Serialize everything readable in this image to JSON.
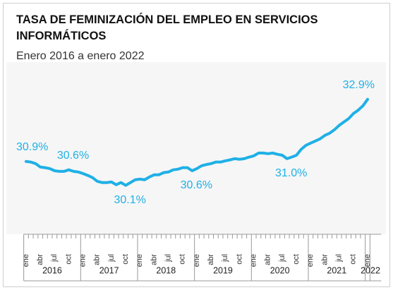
{
  "chart_data": {
    "type": "line",
    "title": "TASA DE FEMINIZACIÓN DEL EMPLEO EN SERVICIOS INFORMÁTICOS",
    "subtitle": "Enero 2016 a enero 2022",
    "categories": [
      "ene",
      null,
      null,
      "abr",
      null,
      null,
      "jul",
      null,
      null,
      "oct",
      null,
      null,
      "ene",
      null,
      null,
      "abr",
      null,
      null,
      "jul",
      null,
      null,
      "oct",
      null,
      null,
      "ene",
      null,
      null,
      "abr",
      null,
      null,
      "jul",
      null,
      null,
      "oct",
      null,
      null,
      "ene",
      null,
      null,
      "abr",
      null,
      null,
      "jul",
      null,
      null,
      "oct",
      null,
      null,
      "ene",
      null,
      null,
      "abr",
      null,
      null,
      "jul",
      null,
      null,
      "oct",
      null,
      null,
      "ene",
      null,
      null,
      "abr",
      null,
      null,
      "jul",
      null,
      null,
      "oct",
      null,
      null,
      "ene"
    ],
    "years": [
      "2016",
      "2017",
      "2018",
      "2019",
      "2020",
      "2021",
      "2022"
    ],
    "series": [
      {
        "name": "Tasa de feminización",
        "color": "#1fb0e6",
        "values": [
          30.9,
          30.88,
          30.83,
          30.72,
          30.7,
          30.67,
          30.6,
          30.58,
          30.58,
          30.63,
          30.58,
          30.56,
          30.51,
          30.45,
          30.38,
          30.26,
          30.22,
          30.22,
          30.24,
          30.15,
          30.22,
          30.13,
          30.22,
          30.31,
          30.33,
          30.31,
          30.4,
          30.47,
          30.47,
          30.54,
          30.56,
          30.63,
          30.65,
          30.7,
          30.7,
          30.6,
          30.67,
          30.76,
          30.8,
          30.83,
          30.88,
          30.88,
          30.92,
          30.95,
          30.99,
          30.97,
          30.99,
          31.04,
          31.08,
          31.17,
          31.17,
          31.15,
          31.17,
          31.13,
          31.1,
          30.99,
          31.04,
          31.1,
          31.29,
          31.42,
          31.49,
          31.56,
          31.63,
          31.74,
          31.81,
          31.92,
          32.06,
          32.17,
          32.28,
          32.44,
          32.55,
          32.69,
          32.9
        ],
        "value_labels": [
          "30.9%",
          null,
          null,
          null,
          null,
          null,
          null,
          null,
          null,
          "30.6%",
          null,
          null,
          null,
          null,
          null,
          null,
          null,
          null,
          null,
          null,
          null,
          "30.1%",
          null,
          null,
          null,
          null,
          null,
          null,
          null,
          null,
          null,
          null,
          null,
          null,
          null,
          "30.6%",
          null,
          null,
          null,
          null,
          null,
          null,
          null,
          null,
          null,
          null,
          null,
          null,
          null,
          null,
          null,
          null,
          null,
          null,
          null,
          "31.0%",
          null,
          null,
          null,
          null,
          null,
          null,
          null,
          null,
          null,
          null,
          null,
          null,
          null,
          null,
          null,
          null,
          "32.9%"
        ]
      }
    ],
    "ylim": [
      28.6,
      34.1
    ]
  }
}
